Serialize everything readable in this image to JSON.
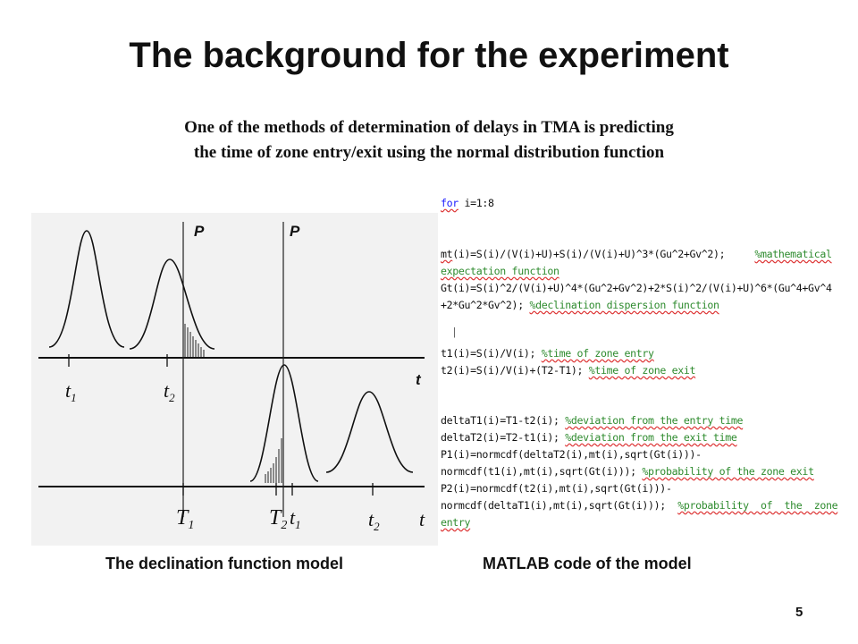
{
  "slide": {
    "title": "The background for the experiment",
    "subtitle_line1": "One of the methods of determination of delays in TMA is predicting",
    "subtitle_line2": "the time of zone entry/exit using the normal distribution function",
    "page_number": "5"
  },
  "figure": {
    "p_label_left": "P",
    "p_label_right": "P",
    "t_axis_label": "t",
    "upper_ticks": [
      "t",
      "t"
    ],
    "upper_tick_subs": [
      "1",
      "2"
    ],
    "lower_ticks": [
      "T",
      "T",
      "t",
      "t",
      "t"
    ],
    "lower_tick_subs": [
      "1",
      "2",
      "1",
      "2",
      ""
    ],
    "caption": "The declination function model"
  },
  "code": {
    "line01_kw": "for",
    "line01_rest": " i=1:8",
    "line02_a": "mt",
    "line02_b": "(i)=S(i)/(V(i)+U)+S(i)/(V(i)+U)^3*(Gu^2+Gv^2);     ",
    "line02_c": "%mathematical",
    "line03": "expectation function",
    "line04": "Gt(i)=S(i)^2/(V(i)+U)^4*(Gu^2+Gv^2)+2*S(i)^2/(V(i)+U)^6*(Gu^4+Gv^4",
    "line05_a": "+2*Gu^2*Gv^2); ",
    "line05_b": "%declination dispersion function",
    "line06": "|",
    "line07_a": "t1(i)=S(i)/V(i); ",
    "line07_b": "%time of zone entry",
    "line08_a": "t2(i)=S(i)/V(i)+(T2-T1); ",
    "line08_b": "%time of zone exit",
    "line09_a": "deltaT1(i)=T1-t2(i); ",
    "line09_b": "%deviation from the entry time",
    "line10_a": "deltaT2(i)=T2-t1(i); ",
    "line10_b": "%deviation from the exit time",
    "line11": "P1(i)=normcdf(deltaT2(i),mt(i),sqrt(Gt(i)))-",
    "line12_a": "normcdf(t1(i),mt(i),sqrt(Gt(i))); ",
    "line12_b": "%probability of the zone exit",
    "line13": "P2(i)=normcdf(t2(i),mt(i),sqrt(Gt(i)))-",
    "line14_a": "normcdf(deltaT1(i),mt(i),sqrt(Gt(i)));  ",
    "line14_b": "%probability  of  the  zone",
    "line15": "entry",
    "caption": "MATLAB code of the model"
  }
}
